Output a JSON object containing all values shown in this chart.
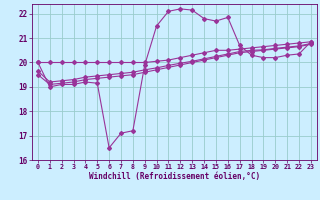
{
  "xlabel": "Windchill (Refroidissement éolien,°C)",
  "bg_color": "#cceeff",
  "line_color": "#993399",
  "grid_color": "#99cccc",
  "tick_color": "#660066",
  "xlim": [
    -0.5,
    23.5
  ],
  "ylim": [
    16,
    22.4
  ],
  "yticks": [
    16,
    17,
    18,
    19,
    20,
    21,
    22
  ],
  "xticks": [
    0,
    1,
    2,
    3,
    4,
    5,
    6,
    7,
    8,
    9,
    10,
    11,
    12,
    13,
    14,
    15,
    16,
    17,
    18,
    19,
    20,
    21,
    22,
    23
  ],
  "curve1_x": [
    0,
    1,
    2,
    3,
    4,
    5,
    6,
    7,
    8,
    9,
    10,
    11,
    12,
    13,
    14,
    15,
    16,
    17,
    18,
    19,
    20,
    21,
    22,
    23
  ],
  "curve1_y": [
    20.0,
    20.0,
    20.0,
    20.0,
    20.0,
    20.0,
    20.0,
    20.0,
    20.0,
    20.0,
    20.05,
    20.1,
    20.2,
    20.3,
    20.4,
    20.5,
    20.5,
    20.55,
    20.6,
    20.65,
    20.7,
    20.75,
    20.8,
    20.85
  ],
  "curve2_x": [
    0,
    1,
    2,
    3,
    4,
    5,
    6,
    7,
    8,
    9,
    10,
    11,
    12,
    13,
    14,
    15,
    16,
    17,
    18,
    19,
    20,
    21,
    22,
    23
  ],
  "curve2_y": [
    20.0,
    19.0,
    19.1,
    19.1,
    19.2,
    19.15,
    16.5,
    17.1,
    17.2,
    19.9,
    21.5,
    22.1,
    22.2,
    22.15,
    21.8,
    21.7,
    21.85,
    20.7,
    20.3,
    20.2,
    20.2,
    20.3,
    20.35,
    20.85
  ],
  "curve3_x": [
    0,
    1,
    2,
    3,
    4,
    5,
    6,
    7,
    8,
    9,
    10,
    11,
    12,
    13,
    14,
    15,
    16,
    17,
    18,
    19,
    20,
    21,
    22,
    23
  ],
  "curve3_y": [
    19.5,
    19.1,
    19.15,
    19.2,
    19.3,
    19.35,
    19.4,
    19.45,
    19.5,
    19.6,
    19.7,
    19.8,
    19.9,
    20.0,
    20.1,
    20.2,
    20.3,
    20.4,
    20.45,
    20.5,
    20.55,
    20.6,
    20.65,
    20.75
  ],
  "curve4_x": [
    0,
    1,
    2,
    3,
    4,
    5,
    6,
    7,
    8,
    9,
    10,
    11,
    12,
    13,
    14,
    15,
    16,
    17,
    18,
    19,
    20,
    21,
    22,
    23
  ],
  "curve4_y": [
    19.65,
    19.2,
    19.25,
    19.3,
    19.4,
    19.45,
    19.5,
    19.55,
    19.6,
    19.7,
    19.78,
    19.88,
    19.97,
    20.05,
    20.15,
    20.25,
    20.35,
    20.45,
    20.5,
    20.52,
    20.58,
    20.63,
    20.68,
    20.78
  ]
}
